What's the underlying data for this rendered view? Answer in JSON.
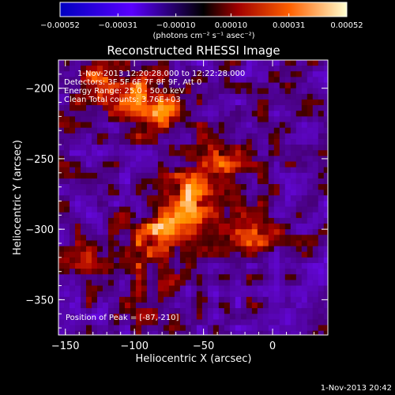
{
  "chart_data": {
    "type": "heatmap",
    "title": "Reconstructed RHESSI Image",
    "xlabel": "Heliocentric X (arcsec)",
    "ylabel": "Heliocentric Y (arcsec)",
    "xlim": [
      -155,
      40
    ],
    "ylim": [
      -375,
      -180
    ],
    "x_ticks": [
      -150,
      -100,
      -50,
      0
    ],
    "x_tick_labels": [
      "−150",
      "−100",
      "−50",
      "0"
    ],
    "y_ticks": [
      -200,
      -250,
      -300,
      -350
    ],
    "y_tick_labels": [
      "−200",
      "−250",
      "−300",
      "−350"
    ],
    "colorbar": {
      "range": [
        -0.00052,
        0.00052
      ],
      "ticks": [
        -0.00052,
        -0.00031,
        -0.0001,
        0.0001,
        0.00031,
        0.00052
      ],
      "tick_labels": [
        "−0.00052",
        "−0.00031",
        "−0.00010",
        "0.00010",
        "0.00031",
        "0.00052"
      ],
      "units": "(photons cm⁻² s⁻¹ asec⁻²)"
    },
    "sources": [
      {
        "x": -87,
        "y": -210,
        "level": 1.0
      },
      {
        "x": -125,
        "y": -195,
        "level": 0.75
      },
      {
        "x": -40,
        "y": -250,
        "level": 0.6
      },
      {
        "x": -60,
        "y": -275,
        "level": 0.8
      },
      {
        "x": -85,
        "y": -302,
        "level": 0.78
      },
      {
        "x": -20,
        "y": -300,
        "level": 0.55
      },
      {
        "x": -130,
        "y": -325,
        "level": 0.45
      },
      {
        "x": -90,
        "y": -345,
        "level": 0.4
      }
    ],
    "background_level": -0.25
  },
  "annotations": {
    "time_range": "1-Nov-2013 12:20:28.000 to 12:22:28.000",
    "detectors": "Detectors: 3F 5F 6F 7F 8F 9F, Att 0",
    "energy_range": "Energy Range: 25.0 - 50.0 keV",
    "clean": "Clean     Total counts: 3.76E+03",
    "peak_position": "Position of Peak = [-87,-210]"
  },
  "footer": {
    "timestamp": "1-Nov-2013 20:42"
  }
}
